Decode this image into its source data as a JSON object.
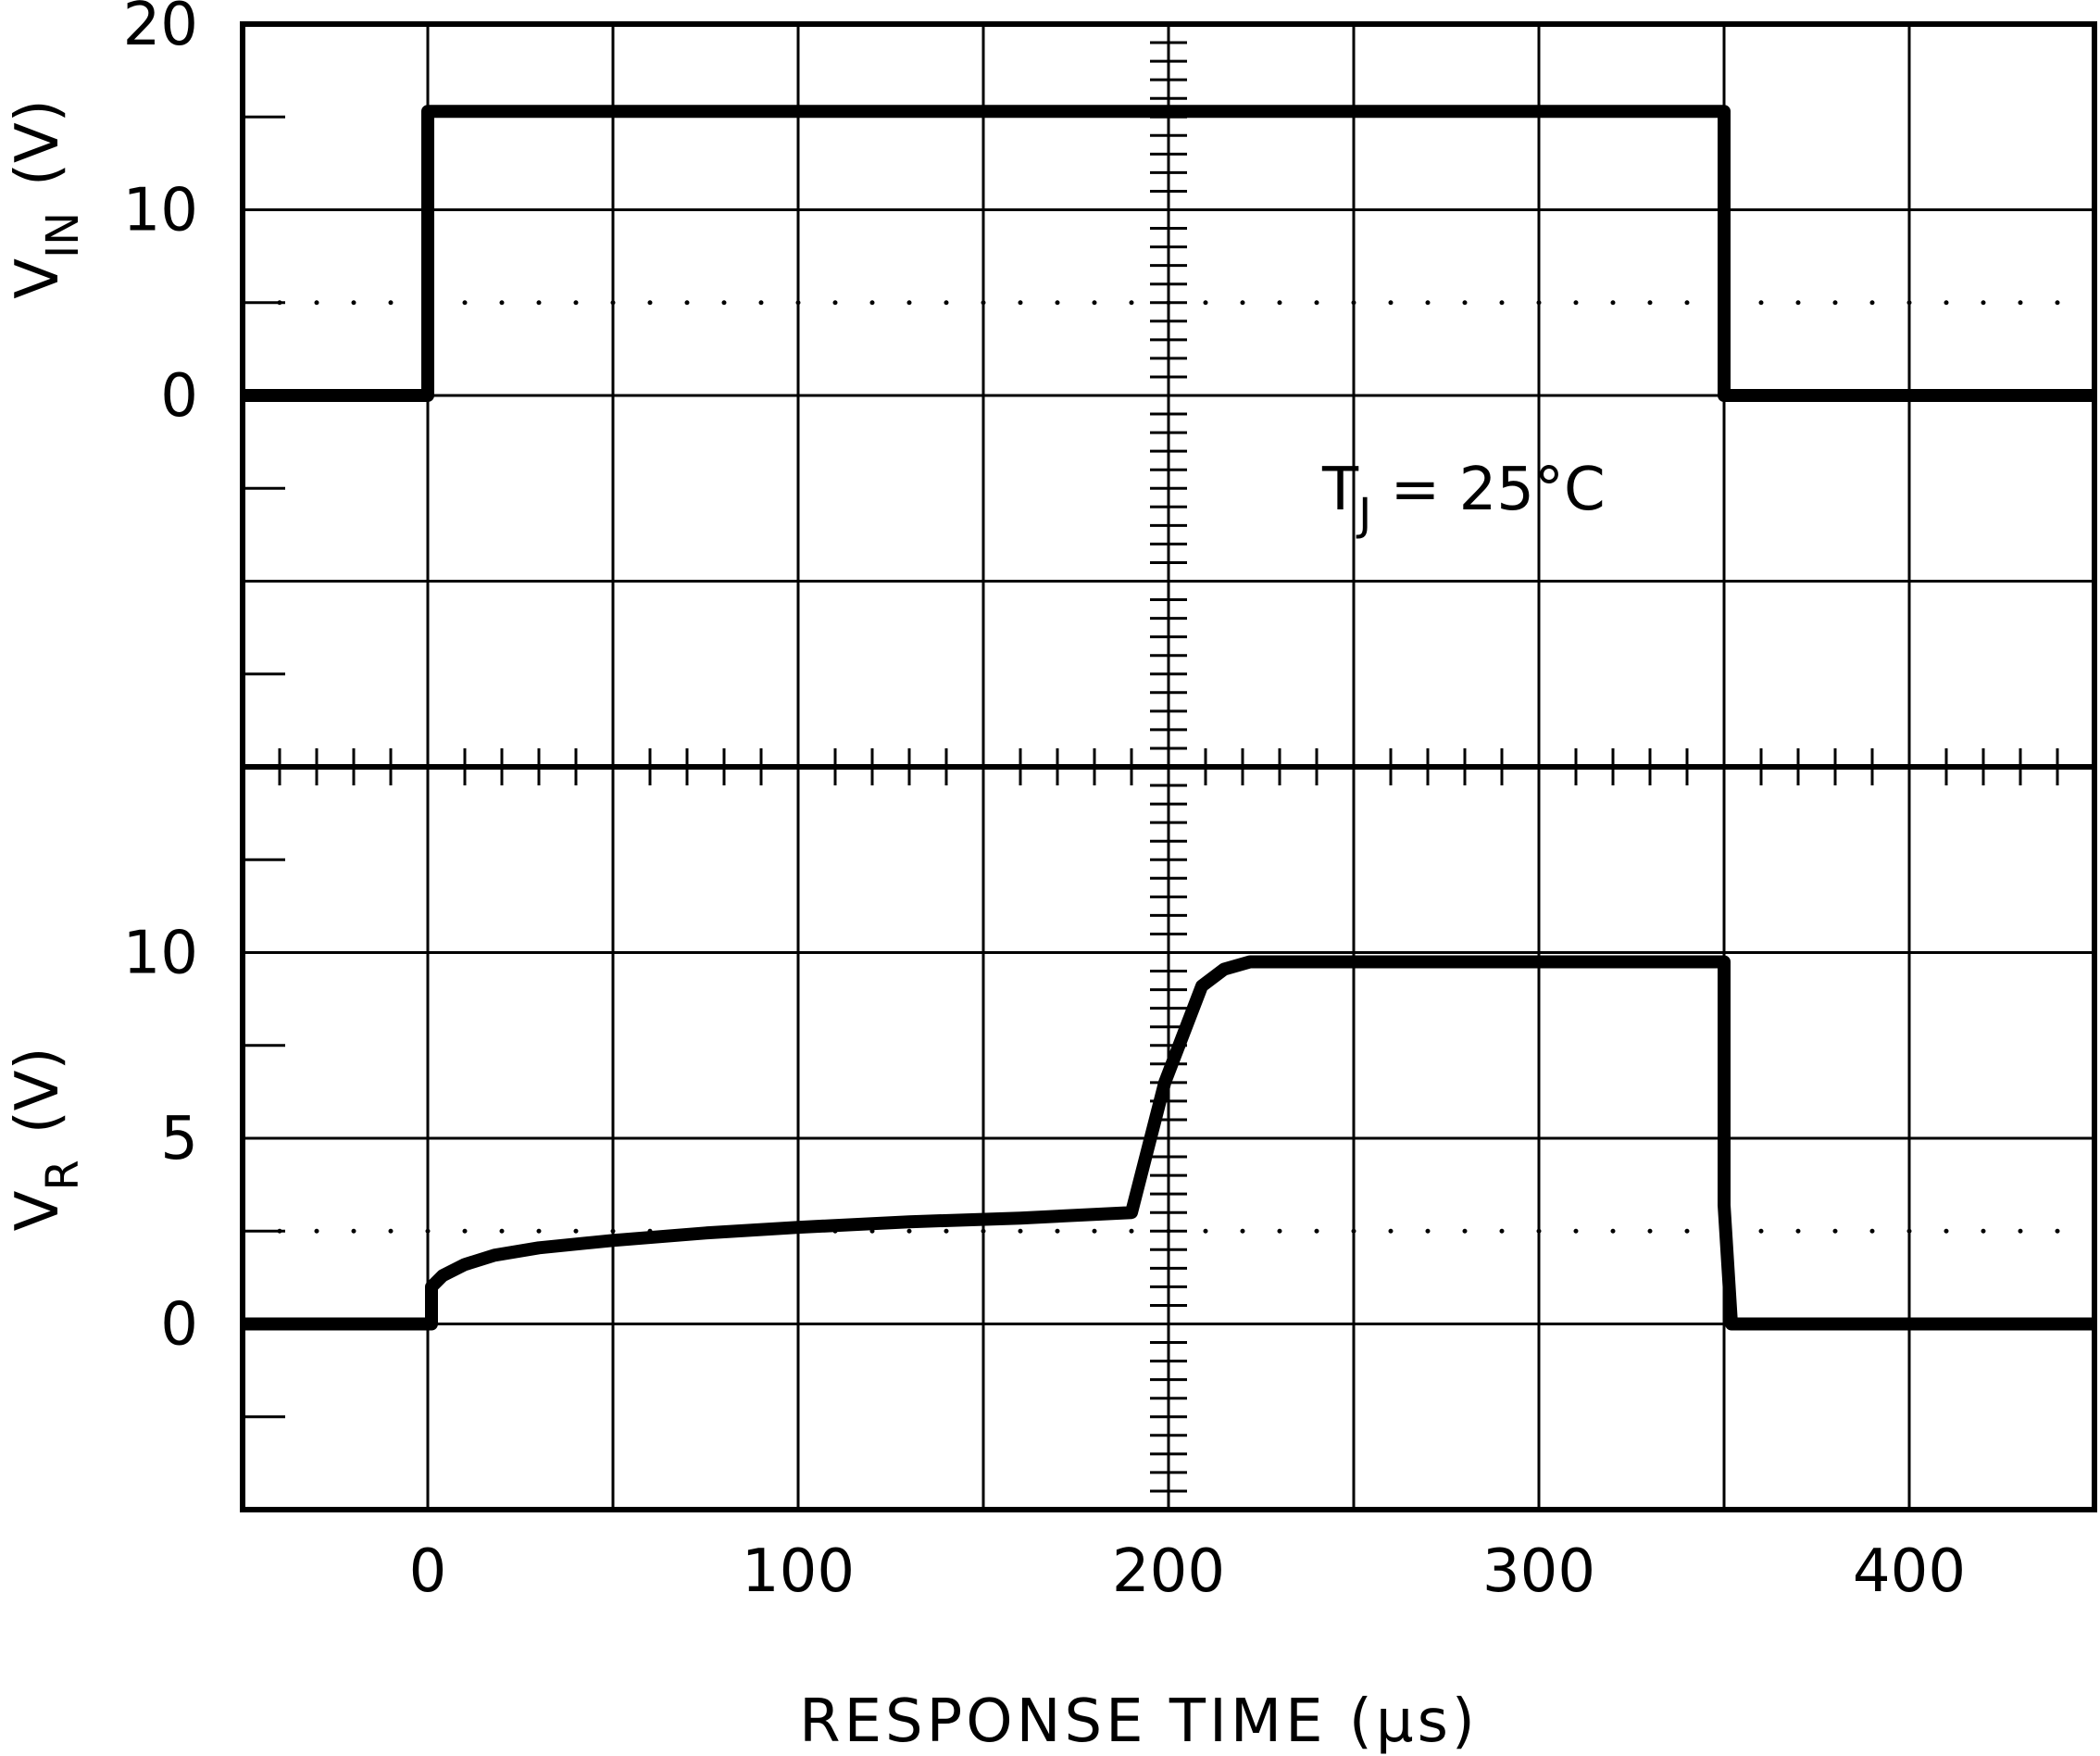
{
  "chart_data": {
    "type": "line",
    "x_axis": {
      "label": "RESPONSE TIME (μs)",
      "range": [
        -50,
        450
      ],
      "ticks": [
        0,
        100,
        200,
        300,
        400
      ],
      "tick_labels": [
        "0",
        "100",
        "200",
        "300",
        "400"
      ],
      "grid_step": 50,
      "minor_step": 10
    },
    "grid": true,
    "annotation": {
      "main": "T",
      "sub": "J",
      "rest": " = 25°C"
    },
    "panels": [
      {
        "y_label": {
          "main": "V",
          "sub": "IN",
          "unit": "(V)"
        },
        "y_range": [
          -20,
          20
        ],
        "y_ticks": [
          0,
          10,
          20
        ],
        "y_tick_labels": [
          "0",
          "10",
          "20"
        ],
        "dotted_reference": 5,
        "series": [
          {
            "x": [
              -50,
              0,
              0,
              350,
              350,
              450
            ],
            "y": [
              0,
              0,
              15.3,
              15.3,
              0,
              0
            ]
          }
        ]
      },
      {
        "y_label": {
          "main": "V",
          "sub": "R",
          "unit": "(V)"
        },
        "y_range": [
          -5,
          15
        ],
        "y_ticks": [
          0,
          5,
          10
        ],
        "y_tick_labels": [
          "0",
          "5",
          "10"
        ],
        "dotted_reference": 2.5,
        "series": [
          {
            "x": [
              -50,
              1,
              1,
              4,
              10,
              18,
              30,
              50,
              75,
              100,
              130,
              160,
              190,
              199,
              209,
              215,
              222,
              240,
              300,
              350,
              350,
              352,
              450
            ],
            "y": [
              0,
              0,
              1.0,
              1.3,
              1.6,
              1.85,
              2.05,
              2.25,
              2.45,
              2.6,
              2.75,
              2.85,
              3.0,
              6.5,
              9.1,
              9.55,
              9.75,
              9.75,
              9.75,
              9.75,
              3.2,
              0,
              0
            ]
          }
        ]
      }
    ]
  }
}
